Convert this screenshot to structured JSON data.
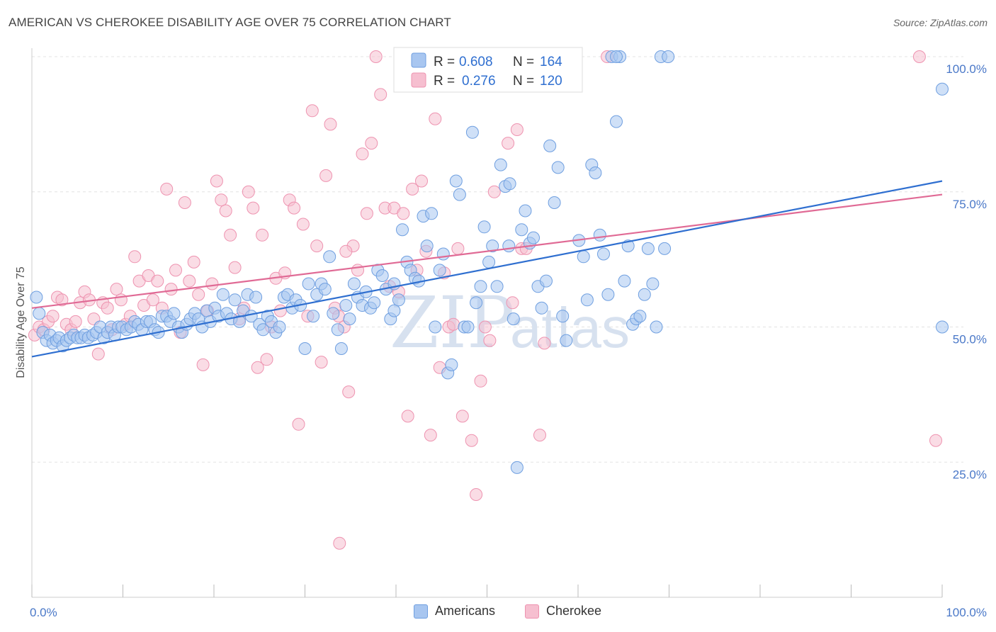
{
  "header": {
    "title": "AMERICAN VS CHEROKEE DISABILITY AGE OVER 75 CORRELATION CHART",
    "source": "Source: ZipAtlas.com"
  },
  "watermark": {
    "zip": "ZIP",
    "atlas": "atlas"
  },
  "legend_box": {
    "row1": {
      "r_label": "R = ",
      "r_value": "0.608",
      "n_label": "N = ",
      "n_value": "164"
    },
    "row2": {
      "r_label": "R = ",
      "r_value": "0.276",
      "n_label": "N = ",
      "n_value": "120"
    }
  },
  "bottom_legend": {
    "americans": "Americans",
    "cherokee": "Cherokee"
  },
  "colors": {
    "americans_fill": "#a8c6f0",
    "americans_stroke": "#6f9fe0",
    "americans_line": "#2f6fd0",
    "cherokee_fill": "#f6bfd0",
    "cherokee_stroke": "#ee93b0",
    "cherokee_line": "#e06a95",
    "tick_color": "#4a78c8"
  },
  "chart_data": {
    "type": "scatter",
    "title": "AMERICAN VS CHEROKEE DISABILITY AGE OVER 75 CORRELATION CHART",
    "xlabel": "",
    "ylabel": "Disability Age Over 75",
    "xlim": [
      0,
      100
    ],
    "ylim": [
      0,
      105
    ],
    "x_tick_labels": [
      "0.0%",
      "100.0%"
    ],
    "y_ticks": [
      25,
      50,
      75,
      100
    ],
    "y_tick_labels": [
      "25.0%",
      "50.0%",
      "75.0%",
      "100.0%"
    ],
    "grid": "horizontal dashed",
    "legend_position": "top-center",
    "series": [
      {
        "name": "Americans",
        "r": 0.608,
        "n": 164,
        "trend": {
          "x": [
            0,
            100
          ],
          "y": [
            44.5,
            77
          ]
        },
        "points": [
          [
            0.5,
            55.5
          ],
          [
            0.8,
            52.5
          ],
          [
            1.2,
            49
          ],
          [
            1.6,
            47.5
          ],
          [
            2,
            48.5
          ],
          [
            2.3,
            47
          ],
          [
            2.7,
            47.5
          ],
          [
            3,
            48
          ],
          [
            3.4,
            46.5
          ],
          [
            3.8,
            47.5
          ],
          [
            4.2,
            48
          ],
          [
            4.6,
            48.5
          ],
          [
            5,
            48
          ],
          [
            5.4,
            48
          ],
          [
            5.8,
            48.5
          ],
          [
            6.2,
            48
          ],
          [
            6.7,
            48.5
          ],
          [
            7.1,
            49
          ],
          [
            7.5,
            50
          ],
          [
            7.9,
            48
          ],
          [
            8.3,
            49
          ],
          [
            8.7,
            50
          ],
          [
            9.1,
            48.5
          ],
          [
            9.5,
            50
          ],
          [
            9.9,
            50
          ],
          [
            10.4,
            49.5
          ],
          [
            10.9,
            50
          ],
          [
            11.3,
            51
          ],
          [
            11.7,
            50.5
          ],
          [
            12.1,
            49.5
          ],
          [
            12.6,
            51
          ],
          [
            13,
            51
          ],
          [
            13.5,
            49.5
          ],
          [
            13.9,
            49
          ],
          [
            14.3,
            52
          ],
          [
            14.8,
            52
          ],
          [
            15.2,
            51
          ],
          [
            15.6,
            52.5
          ],
          [
            16.1,
            50
          ],
          [
            16.5,
            49
          ],
          [
            17,
            50.5
          ],
          [
            17.4,
            51.5
          ],
          [
            17.9,
            52.5
          ],
          [
            18.3,
            51.5
          ],
          [
            18.7,
            50
          ],
          [
            19.2,
            53
          ],
          [
            19.6,
            51
          ],
          [
            20.1,
            53.5
          ],
          [
            20.5,
            52
          ],
          [
            21,
            56
          ],
          [
            21.4,
            52.5
          ],
          [
            21.9,
            51.5
          ],
          [
            22.3,
            55
          ],
          [
            22.8,
            51
          ],
          [
            23.2,
            53
          ],
          [
            23.7,
            56
          ],
          [
            24.1,
            52
          ],
          [
            24.6,
            55.5
          ],
          [
            25,
            50.5
          ],
          [
            25.4,
            49.5
          ],
          [
            25.9,
            52
          ],
          [
            26.3,
            51
          ],
          [
            26.8,
            49
          ],
          [
            27.2,
            50
          ],
          [
            27.7,
            55.5
          ],
          [
            28.1,
            56
          ],
          [
            28.6,
            53.5
          ],
          [
            29,
            55
          ],
          [
            29.5,
            54
          ],
          [
            30,
            46
          ],
          [
            30.4,
            58
          ],
          [
            30.9,
            52
          ],
          [
            31.3,
            56
          ],
          [
            31.8,
            58
          ],
          [
            32.2,
            57
          ],
          [
            32.7,
            63
          ],
          [
            33.1,
            52.5
          ],
          [
            33.6,
            49.5
          ],
          [
            34,
            46
          ],
          [
            34.5,
            54
          ],
          [
            34.9,
            51.5
          ],
          [
            35.4,
            58
          ],
          [
            35.8,
            55.5
          ],
          [
            36.3,
            54
          ],
          [
            36.7,
            56.5
          ],
          [
            37.2,
            53.5
          ],
          [
            37.6,
            54.5
          ],
          [
            38,
            60.5
          ],
          [
            38.5,
            59.5
          ],
          [
            38.9,
            57
          ],
          [
            39.4,
            51.5
          ],
          [
            39.8,
            53
          ],
          [
            40.3,
            55
          ],
          [
            40.7,
            68
          ],
          [
            41.2,
            62
          ],
          [
            41.6,
            60.5
          ],
          [
            42.1,
            59
          ],
          [
            42.5,
            58.5
          ],
          [
            43,
            70.5
          ],
          [
            43.4,
            65
          ],
          [
            43.9,
            71
          ],
          [
            44.3,
            50
          ],
          [
            44.8,
            60.5
          ],
          [
            45.2,
            63.5
          ],
          [
            45.7,
            41.5
          ],
          [
            46.1,
            43
          ],
          [
            46.6,
            77
          ],
          [
            47,
            74.5
          ],
          [
            47.5,
            50
          ],
          [
            47.9,
            50
          ],
          [
            48.4,
            86
          ],
          [
            48.8,
            54.5
          ],
          [
            49.3,
            57.5
          ],
          [
            49.7,
            68.5
          ],
          [
            50.2,
            62
          ],
          [
            50.6,
            65
          ],
          [
            51.1,
            57.5
          ],
          [
            51.5,
            80
          ],
          [
            52,
            76
          ],
          [
            52.4,
            65
          ],
          [
            52.9,
            51.5
          ],
          [
            53.3,
            24
          ],
          [
            53.8,
            68
          ],
          [
            54.2,
            71.5
          ],
          [
            54.7,
            65.5
          ],
          [
            55.1,
            66.5
          ],
          [
            55.6,
            57.5
          ],
          [
            56,
            53.5
          ],
          [
            56.5,
            58.5
          ],
          [
            56.9,
            83.5
          ],
          [
            57.4,
            73
          ],
          [
            57.8,
            79.5
          ],
          [
            58.3,
            52
          ],
          [
            58.7,
            47.5
          ],
          [
            59.2,
            100
          ],
          [
            59.7,
            100
          ],
          [
            60.1,
            66
          ],
          [
            60.6,
            63
          ],
          [
            61,
            55
          ],
          [
            61.5,
            80
          ],
          [
            61.9,
            78.5
          ],
          [
            62.4,
            67
          ],
          [
            62.8,
            63.5
          ],
          [
            63.3,
            56
          ],
          [
            63.7,
            100
          ],
          [
            64.2,
            88
          ],
          [
            64.6,
            100
          ],
          [
            65.1,
            58.5
          ],
          [
            65.5,
            65
          ],
          [
            66,
            50.5
          ],
          [
            66.4,
            51.5
          ],
          [
            66.8,
            52
          ],
          [
            67.3,
            56
          ],
          [
            67.7,
            64.5
          ],
          [
            68.2,
            58
          ],
          [
            68.6,
            50
          ],
          [
            69.1,
            100
          ],
          [
            69.5,
            64.5
          ],
          [
            69.9,
            100
          ],
          [
            100,
            50
          ],
          [
            100,
            94
          ],
          [
            64.2,
            100
          ],
          [
            52.5,
            76.5
          ],
          [
            39.8,
            58
          ]
        ]
      },
      {
        "name": "Cherokee",
        "r": 0.276,
        "n": 120,
        "trend": {
          "x": [
            0,
            100
          ],
          "y": [
            53.5,
            74.5
          ]
        },
        "points": [
          [
            0.3,
            48.5
          ],
          [
            0.8,
            50
          ],
          [
            1.3,
            49.5
          ],
          [
            1.8,
            51
          ],
          [
            2.3,
            52
          ],
          [
            2.8,
            55.5
          ],
          [
            3.3,
            55
          ],
          [
            3.8,
            50.5
          ],
          [
            4.3,
            49.5
          ],
          [
            4.8,
            51
          ],
          [
            5.3,
            54.5
          ],
          [
            5.8,
            56.5
          ],
          [
            6.3,
            55
          ],
          [
            6.8,
            51.5
          ],
          [
            7.3,
            45
          ],
          [
            7.8,
            54.5
          ],
          [
            8.3,
            53.5
          ],
          [
            8.8,
            49.5
          ],
          [
            9.3,
            57
          ],
          [
            9.8,
            55
          ],
          [
            10.3,
            50.5
          ],
          [
            10.8,
            52
          ],
          [
            11.3,
            63
          ],
          [
            11.8,
            58.5
          ],
          [
            12.3,
            54
          ],
          [
            12.8,
            59.5
          ],
          [
            13.3,
            55
          ],
          [
            13.8,
            58.5
          ],
          [
            14.3,
            53.5
          ],
          [
            14.8,
            75.5
          ],
          [
            15.3,
            57
          ],
          [
            15.8,
            60.5
          ],
          [
            16.3,
            49
          ],
          [
            16.8,
            73
          ],
          [
            17.3,
            58.5
          ],
          [
            17.8,
            62
          ],
          [
            18.3,
            56
          ],
          [
            18.8,
            43
          ],
          [
            19.3,
            53
          ],
          [
            19.8,
            58
          ],
          [
            20.3,
            77
          ],
          [
            20.8,
            73.5
          ],
          [
            21.3,
            71.5
          ],
          [
            21.8,
            67
          ],
          [
            22.3,
            61
          ],
          [
            22.8,
            51.5
          ],
          [
            23.3,
            53.5
          ],
          [
            23.8,
            75
          ],
          [
            24.3,
            72
          ],
          [
            24.8,
            42.5
          ],
          [
            25.3,
            67
          ],
          [
            25.8,
            44
          ],
          [
            26.3,
            50
          ],
          [
            26.8,
            59
          ],
          [
            27.3,
            53
          ],
          [
            27.8,
            60
          ],
          [
            28.3,
            73.5
          ],
          [
            28.8,
            72
          ],
          [
            29.3,
            32
          ],
          [
            29.8,
            69
          ],
          [
            30.3,
            52
          ],
          [
            30.8,
            90
          ],
          [
            31.3,
            65
          ],
          [
            31.8,
            43.5
          ],
          [
            32.3,
            78
          ],
          [
            32.8,
            87.5
          ],
          [
            33.3,
            53.5
          ],
          [
            33.8,
            10
          ],
          [
            34.3,
            50
          ],
          [
            34.8,
            38
          ],
          [
            35.3,
            65
          ],
          [
            35.8,
            60.5
          ],
          [
            36.3,
            82
          ],
          [
            36.8,
            71
          ],
          [
            37.3,
            84
          ],
          [
            37.8,
            100
          ],
          [
            38.3,
            93
          ],
          [
            38.8,
            72
          ],
          [
            39.3,
            57.5
          ],
          [
            39.8,
            72
          ],
          [
            40.3,
            56.5
          ],
          [
            40.8,
            71
          ],
          [
            41.3,
            33.5
          ],
          [
            41.8,
            75.5
          ],
          [
            42.3,
            60.5
          ],
          [
            42.8,
            77
          ],
          [
            43.3,
            64
          ],
          [
            43.8,
            30
          ],
          [
            44.3,
            88.5
          ],
          [
            44.8,
            42.5
          ],
          [
            45.3,
            60
          ],
          [
            45.8,
            50
          ],
          [
            46.3,
            50.5
          ],
          [
            46.8,
            64.5
          ],
          [
            47.3,
            33.5
          ],
          [
            47.8,
            100
          ],
          [
            48.3,
            29
          ],
          [
            48.8,
            19
          ],
          [
            49.3,
            40
          ],
          [
            49.8,
            50
          ],
          [
            50.3,
            47.5
          ],
          [
            50.8,
            75
          ],
          [
            51.3,
            100
          ],
          [
            51.8,
            100
          ],
          [
            52.3,
            84
          ],
          [
            52.8,
            54.5
          ],
          [
            53.3,
            86.5
          ],
          [
            53.8,
            64.5
          ],
          [
            54.3,
            64.5
          ],
          [
            54.8,
            100
          ],
          [
            55.3,
            100
          ],
          [
            55.8,
            30
          ],
          [
            56.3,
            47
          ],
          [
            99.3,
            29
          ],
          [
            52.8,
            100
          ],
          [
            34.5,
            64
          ],
          [
            33.7,
            52
          ],
          [
            51.7,
            100
          ],
          [
            63.2,
            100
          ],
          [
            97.5,
            100
          ]
        ]
      }
    ]
  }
}
